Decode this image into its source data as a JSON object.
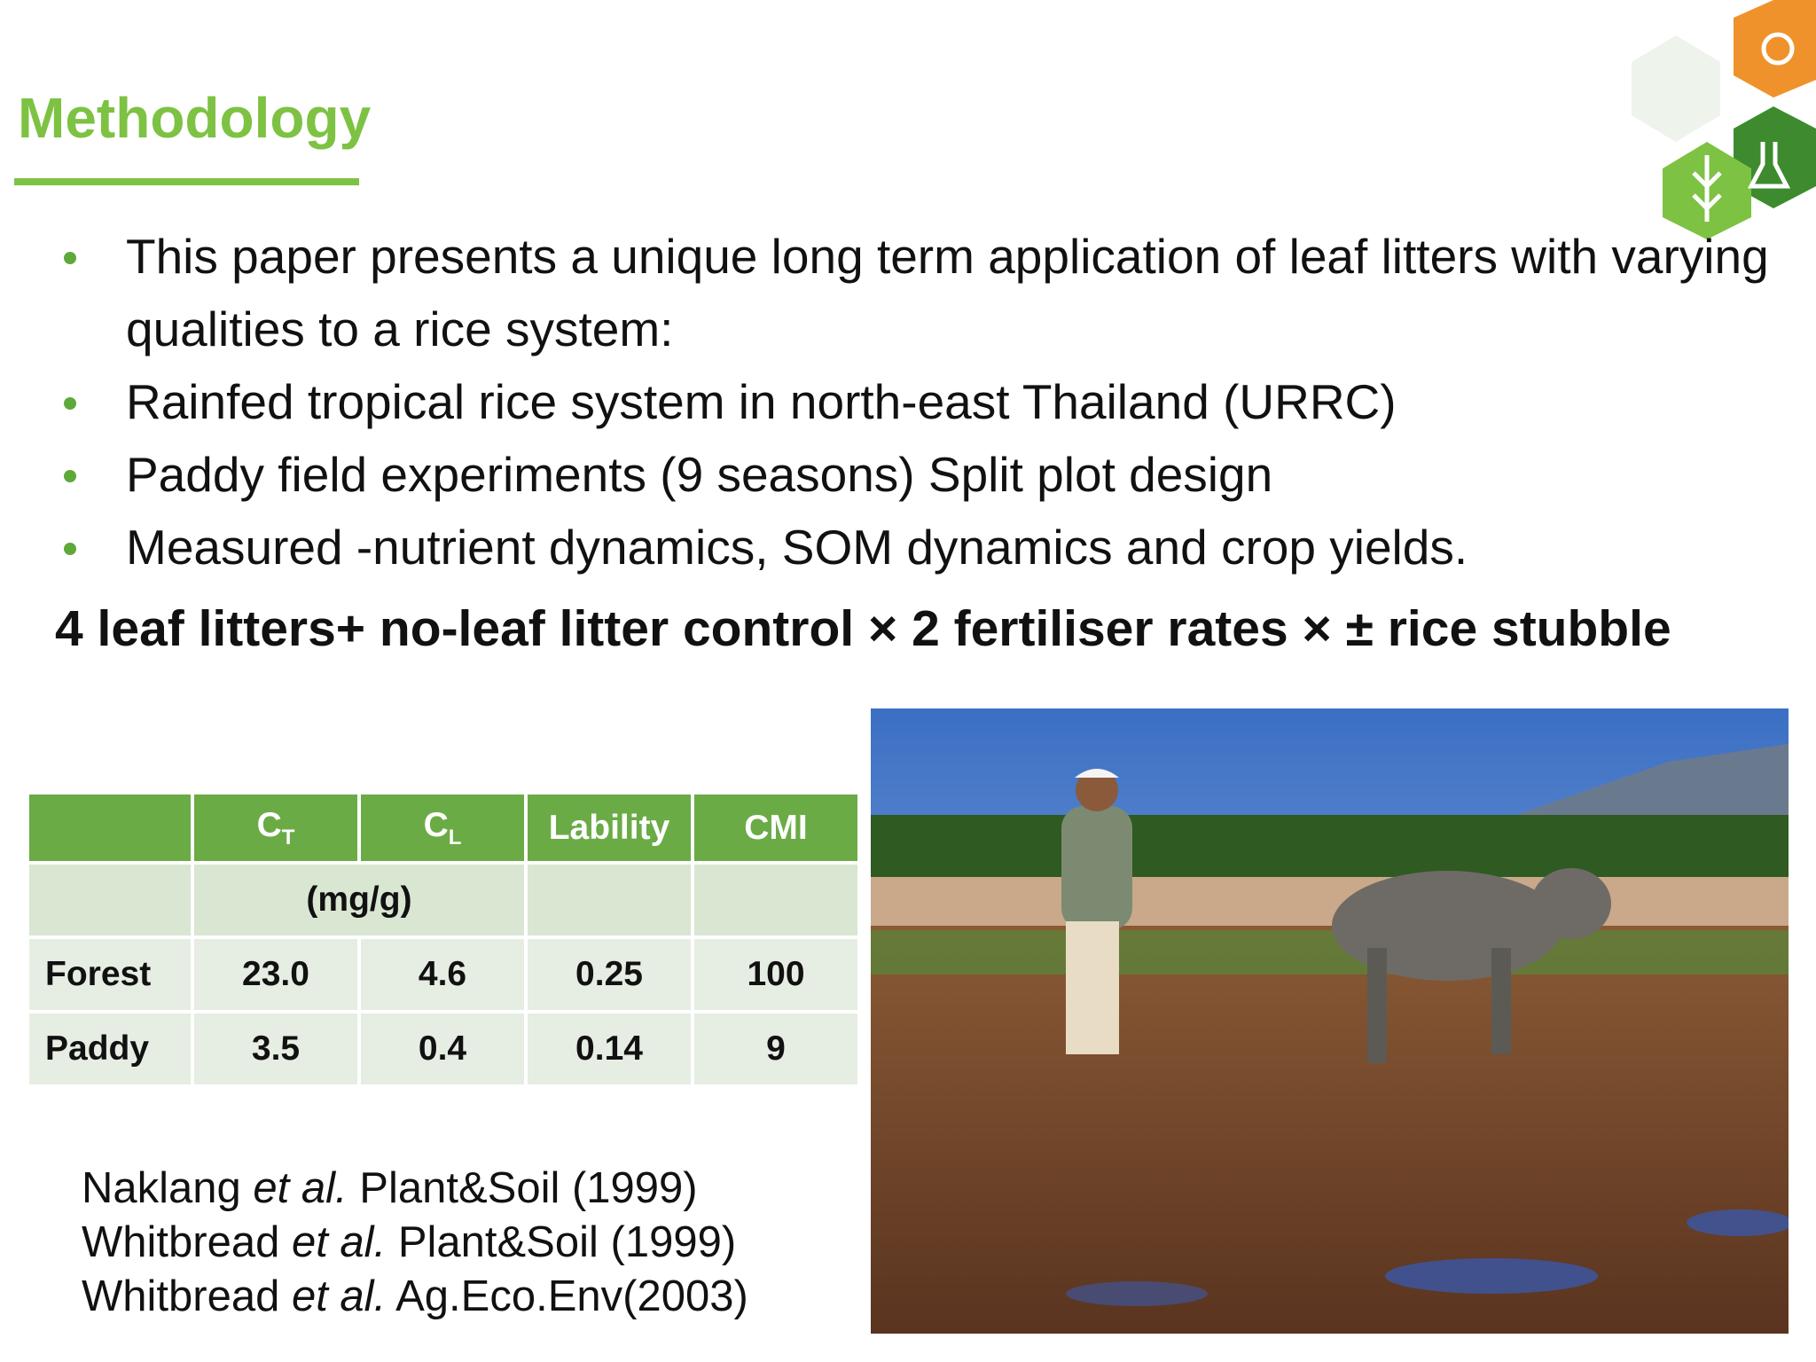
{
  "header": {
    "title": "Methodology"
  },
  "bullets": [
    "This paper presents a unique long term application of leaf litters with varying qualities to a rice system:",
    "Rainfed tropical rice system in north-east Thailand (URRC)",
    "Paddy field experiments (9 seasons) Split plot design",
    "Measured -nutrient dynamics, SOM dynamics and crop yields."
  ],
  "design": "4 leaf litters+ no-leaf litter control × 2 fertiliser rates × ±  rice stubble",
  "table": {
    "header": [
      {
        "main": "C",
        "sub": "T"
      },
      {
        "main": "C",
        "sub": "L"
      },
      "Lability",
      "CMI"
    ],
    "unit": "(mg/g)",
    "rows": [
      [
        "Forest",
        "23.0",
        "4.6",
        "0.25",
        "100"
      ],
      [
        "Paddy",
        "3.5",
        "0.4",
        "0.14",
        "9"
      ]
    ]
  },
  "references": [
    {
      "author": "Naklang",
      "etal": "et al.",
      "source": "Plant&Soil (1999)"
    },
    {
      "author": "Whitbread",
      "etal": "et al.",
      "source": "Plant&Soil (1999)"
    },
    {
      "author": "Whitbread",
      "etal": "et al.",
      "source": "Ag.Eco.Env(2003)"
    }
  ]
}
